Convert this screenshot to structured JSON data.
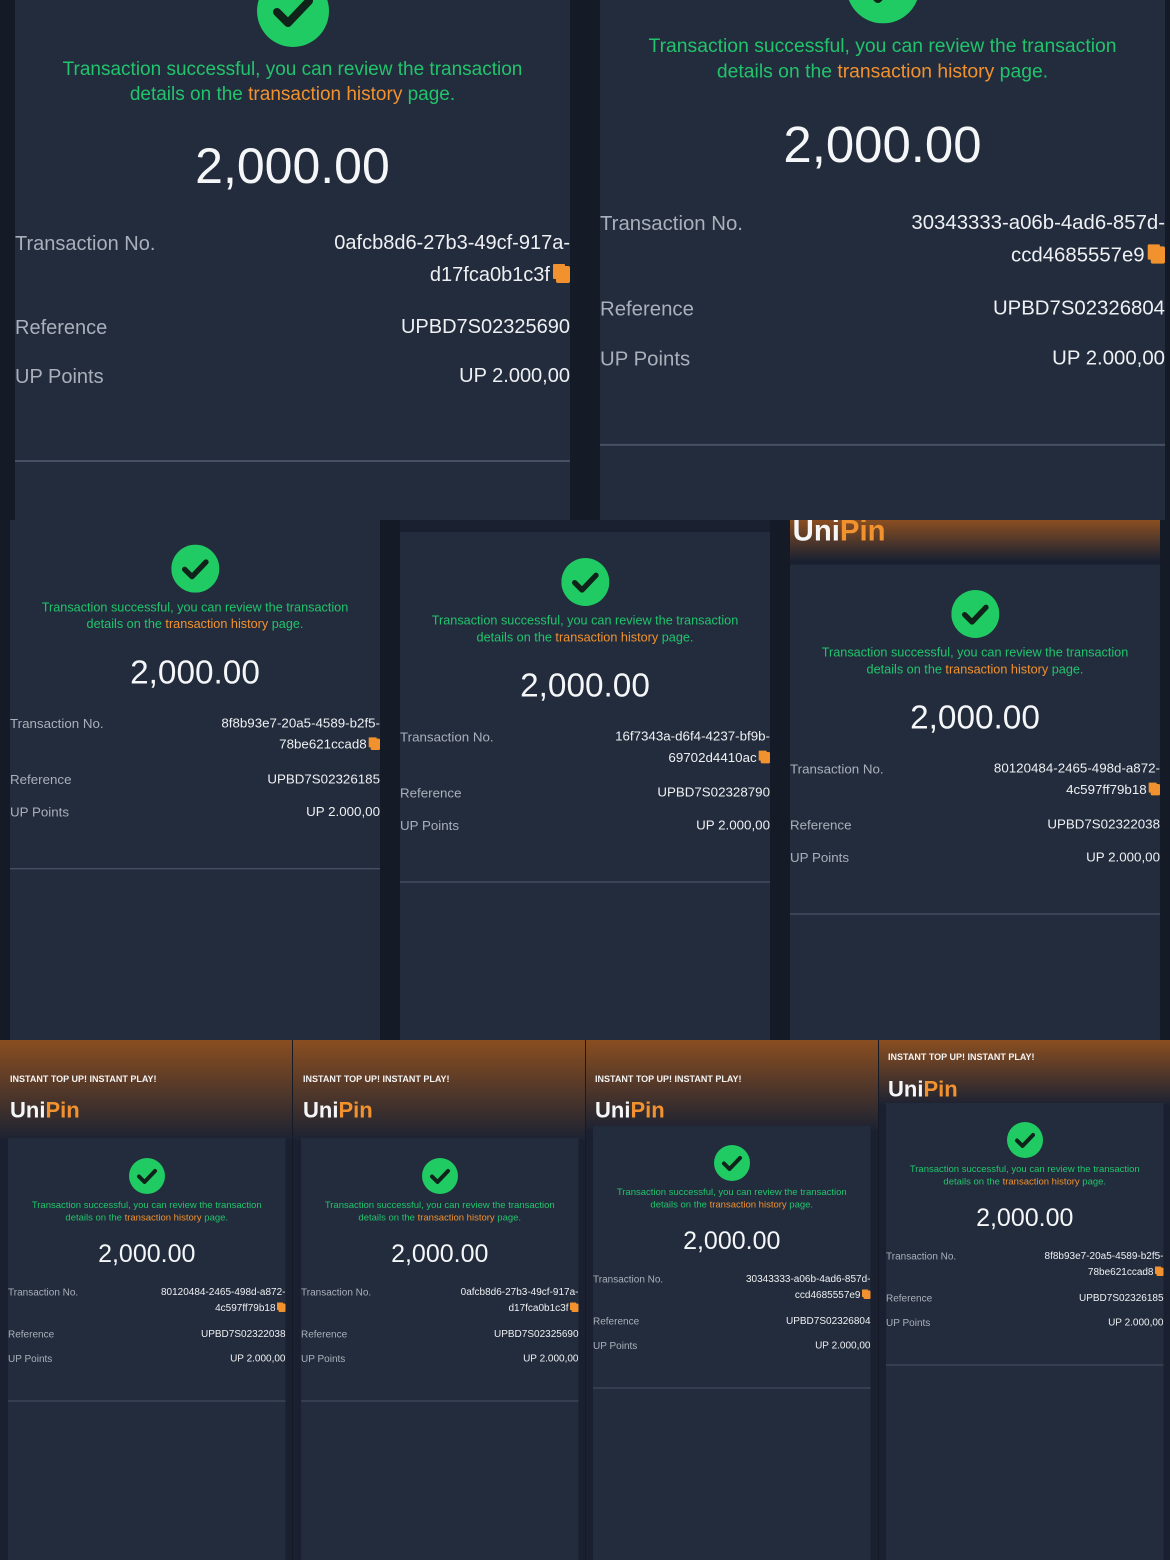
{
  "panels": [
    {
      "message_parts": [
        "Transaction successful, you can review the transaction",
        "details on the ",
        "transaction history",
        " page."
      ],
      "amount": "2,000.00",
      "transaction_label": "Transaction No.",
      "transaction_no": [
        "0afcb8d6-27b3-49cf-917a-",
        "d17fca0b1c3f"
      ],
      "reference_label": "Reference",
      "reference": "UPBD7S02325690",
      "points_label": "UP Points",
      "points": "UP 2.000,00"
    },
    {
      "message_parts": [
        "Transaction successful, you can review the transaction",
        "details on the ",
        "transaction history",
        " page."
      ],
      "amount": "2,000.00",
      "transaction_label": "Transaction No.",
      "transaction_no": [
        "30343333-a06b-4ad6-857d-",
        "ccd4685557e9"
      ],
      "reference_label": "Reference",
      "reference": "UPBD7S02326804",
      "points_label": "UP Points",
      "points": "UP 2.000,00"
    },
    {
      "message_parts": [
        "Transaction successful, you can review the transaction",
        "details on the ",
        "transaction history",
        " page."
      ],
      "amount": "2,000.00",
      "transaction_label": "Transaction No.",
      "transaction_no": [
        "8f8b93e7-20a5-4589-b2f5-",
        "78be621ccad8"
      ],
      "reference_label": "Reference",
      "reference": "UPBD7S02326185",
      "points_label": "UP Points",
      "points": "UP 2.000,00"
    },
    {
      "message_parts": [
        "Transaction successful, you can review the transaction",
        "details on the ",
        "transaction history",
        " page."
      ],
      "amount": "2,000.00",
      "transaction_label": "Transaction No.",
      "transaction_no": [
        "16f7343a-d6f4-4237-bf9b-",
        "69702d4410ac"
      ],
      "reference_label": "Reference",
      "reference": "UPBD7S02328790",
      "points_label": "UP Points",
      "points": "UP 2.000,00"
    },
    {
      "brand": [
        "Uni",
        "Pin"
      ],
      "message_parts": [
        "Transaction successful, you can review the transaction",
        "details on the ",
        "transaction history",
        " page."
      ],
      "amount": "2,000.00",
      "transaction_label": "Transaction No.",
      "transaction_no": [
        "80120484-2465-498d-a872-",
        "4c597ff79b18"
      ],
      "reference_label": "Reference",
      "reference": "UPBD7S02322038",
      "points_label": "UP Points",
      "points": "UP 2.000,00"
    },
    {
      "header": "INSTANT TOP UP! INSTANT PLAY!",
      "brand": [
        "Uni",
        "Pin"
      ],
      "message_parts": [
        "Transaction successful, you can review the transaction",
        "details on the ",
        "transaction history",
        " page."
      ],
      "amount": "2,000.00",
      "transaction_label": "Transaction No.",
      "transaction_no": [
        "80120484-2465-498d-a872-",
        "4c597ff79b18"
      ],
      "reference_label": "Reference",
      "reference": "UPBD7S02322038",
      "points_label": "UP Points",
      "points": "UP 2.000,00"
    },
    {
      "header": "INSTANT TOP UP! INSTANT PLAY!",
      "brand": [
        "Uni",
        "Pin"
      ],
      "message_parts": [
        "Transaction successful, you can review the transaction",
        "details on the ",
        "transaction history",
        " page."
      ],
      "amount": "2,000.00",
      "transaction_label": "Transaction No.",
      "transaction_no": [
        "0afcb8d6-27b3-49cf-917a-",
        "d17fca0b1c3f"
      ],
      "reference_label": "Reference",
      "reference": "UPBD7S02325690",
      "points_label": "UP Points",
      "points": "UP 2.000,00"
    },
    {
      "header": "INSTANT TOP UP! INSTANT PLAY!",
      "brand": [
        "Uni",
        "Pin"
      ],
      "message_parts": [
        "Transaction successful, you can review the transaction",
        "details on the ",
        "transaction history",
        " page."
      ],
      "amount": "2,000.00",
      "transaction_label": "Transaction No.",
      "transaction_no": [
        "30343333-a06b-4ad6-857d-",
        "ccd4685557e9"
      ],
      "reference_label": "Reference",
      "reference": "UPBD7S02326804",
      "points_label": "UP Points",
      "points": "UP 2.000,00"
    },
    {
      "header": "INSTANT TOP UP! INSTANT PLAY!",
      "brand": [
        "Uni",
        "Pin"
      ],
      "message_parts": [
        "Transaction successful, you can review the transaction",
        "details on the ",
        "transaction history",
        " page."
      ],
      "amount": "2,000.00",
      "transaction_label": "Transaction No.",
      "transaction_no": [
        "8f8b93e7-20a5-4589-b2f5-",
        "78be621ccad8"
      ],
      "reference_label": "Reference",
      "reference": "UPBD7S02326185",
      "points_label": "UP Points",
      "points": "UP 2.000,00"
    }
  ]
}
